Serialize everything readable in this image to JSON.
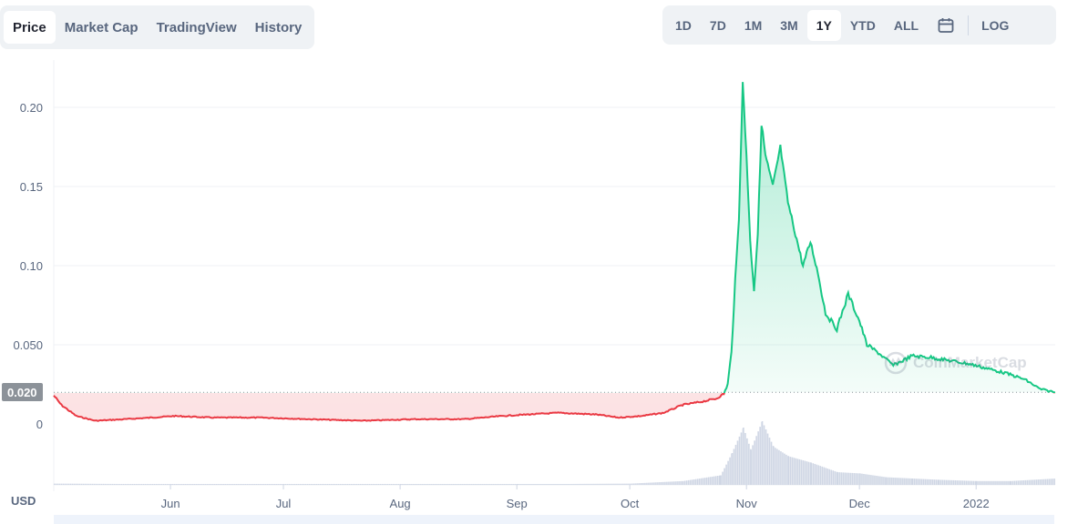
{
  "tabs": [
    {
      "label": "Price",
      "active": true
    },
    {
      "label": "Market Cap",
      "active": false
    },
    {
      "label": "TradingView",
      "active": false
    },
    {
      "label": "History",
      "active": false
    }
  ],
  "ranges": [
    {
      "label": "1D",
      "active": false
    },
    {
      "label": "7D",
      "active": false
    },
    {
      "label": "1M",
      "active": false
    },
    {
      "label": "3M",
      "active": false
    },
    {
      "label": "1Y",
      "active": true
    },
    {
      "label": "YTD",
      "active": false
    },
    {
      "label": "ALL",
      "active": false
    }
  ],
  "calendar_icon": "calendar-icon",
  "log_label": "LOG",
  "currency_label": "USD",
  "current_price_label": "0.020",
  "watermark_text": "CoinMarketCap",
  "colors": {
    "up": "#16c784",
    "down": "#ea3943",
    "volume": "#cfd6e4",
    "grid": "#eff2f5",
    "baseline": "#8c9299"
  },
  "chart_data": {
    "type": "line",
    "title": "",
    "xlabel": "",
    "ylabel": "",
    "x_range": [
      "2021-05-01",
      "2022-01-22"
    ],
    "ylim": [
      0,
      0.22
    ],
    "y_ticks": [
      {
        "value": 0,
        "label": "0"
      },
      {
        "value": 0.05,
        "label": "0.050"
      },
      {
        "value": 0.1,
        "label": "0.10"
      },
      {
        "value": 0.15,
        "label": "0.15"
      },
      {
        "value": 0.2,
        "label": "0.20"
      }
    ],
    "x_ticks": [
      {
        "date": "2021-06-01",
        "label": "Jun"
      },
      {
        "date": "2021-07-01",
        "label": "Jul"
      },
      {
        "date": "2021-08-01",
        "label": "Aug"
      },
      {
        "date": "2021-09-01",
        "label": "Sep"
      },
      {
        "date": "2021-10-01",
        "label": "Oct"
      },
      {
        "date": "2021-11-01",
        "label": "Nov"
      },
      {
        "date": "2021-12-01",
        "label": "Dec"
      },
      {
        "date": "2022-01-01",
        "label": "2022"
      }
    ],
    "reference_price": 0.02,
    "series": [
      {
        "points": [
          [
            "2021-05-01",
            0.018
          ],
          [
            "2021-05-03",
            0.012
          ],
          [
            "2021-05-07",
            0.005
          ],
          [
            "2021-05-12",
            0.002
          ],
          [
            "2021-05-20",
            0.003
          ],
          [
            "2021-05-27",
            0.004
          ],
          [
            "2021-06-02",
            0.005
          ],
          [
            "2021-06-12",
            0.004
          ],
          [
            "2021-06-25",
            0.004
          ],
          [
            "2021-07-08",
            0.003
          ],
          [
            "2021-07-22",
            0.002
          ],
          [
            "2021-08-05",
            0.003
          ],
          [
            "2021-08-18",
            0.003
          ],
          [
            "2021-08-28",
            0.005
          ],
          [
            "2021-09-04",
            0.006
          ],
          [
            "2021-09-12",
            0.007
          ],
          [
            "2021-09-22",
            0.006
          ],
          [
            "2021-09-28",
            0.004
          ],
          [
            "2021-10-04",
            0.005
          ],
          [
            "2021-10-10",
            0.007
          ],
          [
            "2021-10-15",
            0.012
          ],
          [
            "2021-10-20",
            0.014
          ],
          [
            "2021-10-24",
            0.016
          ],
          [
            "2021-10-26",
            0.019
          ],
          [
            "2021-10-27",
            0.025
          ],
          [
            "2021-10-28",
            0.045
          ],
          [
            "2021-10-29",
            0.09
          ],
          [
            "2021-10-30",
            0.13
          ],
          [
            "2021-10-31",
            0.215
          ],
          [
            "2021-11-01",
            0.17
          ],
          [
            "2021-11-02",
            0.115
          ],
          [
            "2021-11-03",
            0.085
          ],
          [
            "2021-11-04",
            0.12
          ],
          [
            "2021-11-05",
            0.19
          ],
          [
            "2021-11-06",
            0.17
          ],
          [
            "2021-11-08",
            0.15
          ],
          [
            "2021-11-10",
            0.175
          ],
          [
            "2021-11-12",
            0.14
          ],
          [
            "2021-11-14",
            0.12
          ],
          [
            "2021-11-16",
            0.1
          ],
          [
            "2021-11-18",
            0.115
          ],
          [
            "2021-11-20",
            0.095
          ],
          [
            "2021-11-22",
            0.07
          ],
          [
            "2021-11-25",
            0.06
          ],
          [
            "2021-11-28",
            0.082
          ],
          [
            "2021-12-01",
            0.065
          ],
          [
            "2021-12-03",
            0.05
          ],
          [
            "2021-12-06",
            0.045
          ],
          [
            "2021-12-10",
            0.037
          ],
          [
            "2021-12-15",
            0.043
          ],
          [
            "2021-12-20",
            0.042
          ],
          [
            "2021-12-25",
            0.04
          ],
          [
            "2021-12-30",
            0.038
          ],
          [
            "2022-01-04",
            0.035
          ],
          [
            "2022-01-09",
            0.032
          ],
          [
            "2022-01-14",
            0.028
          ],
          [
            "2022-01-18",
            0.022
          ],
          [
            "2022-01-22",
            0.02
          ]
        ]
      }
    ],
    "volume": [
      [
        "2021-05-01",
        0.02
      ],
      [
        "2021-06-01",
        0.01
      ],
      [
        "2021-07-01",
        0.01
      ],
      [
        "2021-08-01",
        0.01
      ],
      [
        "2021-09-01",
        0.01
      ],
      [
        "2021-10-01",
        0.02
      ],
      [
        "2021-10-15",
        0.06
      ],
      [
        "2021-10-25",
        0.15
      ],
      [
        "2021-10-28",
        0.5
      ],
      [
        "2021-10-31",
        0.9
      ],
      [
        "2021-11-02",
        0.55
      ],
      [
        "2021-11-05",
        1.0
      ],
      [
        "2021-11-08",
        0.6
      ],
      [
        "2021-11-12",
        0.45
      ],
      [
        "2021-11-18",
        0.35
      ],
      [
        "2021-11-25",
        0.2
      ],
      [
        "2021-12-01",
        0.18
      ],
      [
        "2021-12-08",
        0.12
      ],
      [
        "2021-12-15",
        0.1
      ],
      [
        "2021-12-22",
        0.08
      ],
      [
        "2022-01-01",
        0.06
      ],
      [
        "2022-01-10",
        0.06
      ],
      [
        "2022-01-22",
        0.1
      ]
    ]
  }
}
